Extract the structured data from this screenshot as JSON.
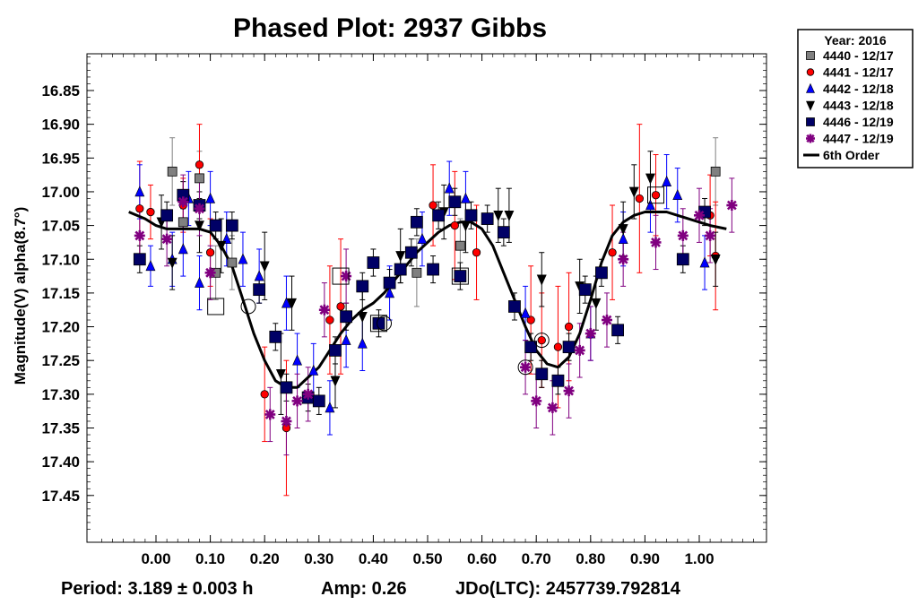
{
  "chart_data": {
    "type": "scatter",
    "title": "Phased Plot: 2937 Gibbs",
    "ylabel": "Magnitude(V) alpha(8.7°)",
    "xlabel": "",
    "xlim": [
      -0.1,
      1.12
    ],
    "ylim": [
      17.5,
      16.8
    ],
    "y_inverted": true,
    "grid": false,
    "legend_position": "outside-top-right",
    "x_ticks": [
      "0.00",
      "0.10",
      "0.20",
      "0.30",
      "0.40",
      "0.50",
      "0.60",
      "0.70",
      "0.80",
      "0.90",
      "1.00"
    ],
    "y_ticks": [
      "16.85",
      "16.90",
      "16.95",
      "17.00",
      "17.05",
      "17.10",
      "17.15",
      "17.20",
      "17.25",
      "17.30",
      "17.35",
      "17.40",
      "17.45"
    ],
    "legend_title": "Year: 2016",
    "series": [
      {
        "name": "4440 - 12/17",
        "marker": "square",
        "color": "#808080",
        "points": [
          [
            0.03,
            16.97,
            0.05
          ],
          [
            0.05,
            17.045,
            0.04
          ],
          [
            0.08,
            16.98,
            0.04
          ],
          [
            0.11,
            17.12,
            0.04
          ],
          [
            0.14,
            17.105,
            0.04
          ],
          [
            0.48,
            17.12,
            0.05
          ],
          [
            0.56,
            17.08,
            0.04
          ],
          [
            1.03,
            16.97,
            0.05
          ]
        ]
      },
      {
        "name": "4441 - 12/17",
        "marker": "circle",
        "color": "#ff0000",
        "points": [
          [
            -0.03,
            17.025,
            0.07
          ],
          [
            -0.01,
            17.03,
            0.04
          ],
          [
            0.05,
            17.02,
            0.04
          ],
          [
            0.08,
            16.96,
            0.06
          ],
          [
            0.1,
            17.09,
            0.05
          ],
          [
            0.2,
            17.3,
            0.07
          ],
          [
            0.24,
            17.35,
            0.1
          ],
          [
            0.32,
            17.19,
            0.08
          ],
          [
            0.34,
            17.17,
            0.1
          ],
          [
            0.51,
            17.02,
            0.06
          ],
          [
            0.55,
            17.05,
            0.08
          ],
          [
            0.59,
            17.09,
            0.07
          ],
          [
            0.69,
            17.19,
            0.08
          ],
          [
            0.71,
            17.22,
            0.07
          ],
          [
            0.74,
            17.23,
            0.09
          ],
          [
            0.76,
            17.2,
            0.08
          ],
          [
            0.84,
            17.09,
            0.07
          ],
          [
            0.89,
            17.01,
            0.11
          ],
          [
            0.92,
            17.005,
            0.06
          ],
          [
            1.02,
            17.035,
            0.06
          ],
          [
            1.03,
            17.095,
            0.08
          ]
        ]
      },
      {
        "name": "4442 - 12/18",
        "marker": "triangle-up",
        "color": "#0000ff",
        "points": [
          [
            -0.03,
            17.0,
            0.04
          ],
          [
            -0.01,
            17.11,
            0.03
          ],
          [
            0.03,
            17.1,
            0.04
          ],
          [
            0.05,
            17.085,
            0.04
          ],
          [
            0.06,
            17.01,
            0.04
          ],
          [
            0.08,
            17.135,
            0.04
          ],
          [
            0.1,
            17.01,
            0.04
          ],
          [
            0.13,
            17.07,
            0.04
          ],
          [
            0.16,
            17.1,
            0.04
          ],
          [
            0.19,
            17.125,
            0.04
          ],
          [
            0.24,
            17.165,
            0.04
          ],
          [
            0.26,
            17.25,
            0.04
          ],
          [
            0.29,
            17.265,
            0.04
          ],
          [
            0.32,
            17.32,
            0.04
          ],
          [
            0.35,
            17.22,
            0.04
          ],
          [
            0.38,
            17.225,
            0.04
          ],
          [
            0.43,
            17.15,
            0.04
          ],
          [
            0.49,
            17.07,
            0.04
          ],
          [
            0.54,
            16.995,
            0.04
          ],
          [
            0.57,
            17.01,
            0.04
          ],
          [
            0.68,
            17.18,
            0.04
          ],
          [
            0.8,
            17.21,
            0.04
          ],
          [
            0.86,
            17.07,
            0.04
          ],
          [
            0.91,
            17.02,
            0.04
          ],
          [
            0.94,
            16.985,
            0.04
          ],
          [
            0.96,
            17.005,
            0.04
          ],
          [
            1.01,
            17.105,
            0.04
          ]
        ]
      },
      {
        "name": "4443 - 12/18",
        "marker": "triangle-down",
        "color": "#000000",
        "points": [
          [
            0.01,
            17.045,
            0.04
          ],
          [
            0.03,
            17.105,
            0.04
          ],
          [
            0.08,
            17.05,
            0.04
          ],
          [
            0.12,
            17.08,
            0.04
          ],
          [
            0.2,
            17.11,
            0.05
          ],
          [
            0.23,
            17.27,
            0.06
          ],
          [
            0.25,
            17.165,
            0.04
          ],
          [
            0.33,
            17.28,
            0.04
          ],
          [
            0.38,
            17.185,
            0.04
          ],
          [
            0.45,
            17.095,
            0.04
          ],
          [
            0.53,
            17.03,
            0.04
          ],
          [
            0.57,
            17.05,
            0.04
          ],
          [
            0.63,
            17.035,
            0.04
          ],
          [
            0.65,
            17.035,
            0.04
          ],
          [
            0.71,
            17.13,
            0.04
          ],
          [
            0.78,
            17.14,
            0.04
          ],
          [
            0.81,
            17.165,
            0.04
          ],
          [
            0.86,
            17.055,
            0.04
          ],
          [
            0.88,
            17.0,
            0.04
          ],
          [
            0.91,
            16.98,
            0.04
          ],
          [
            1.03,
            17.1,
            0.04
          ]
        ]
      },
      {
        "name": "4446 - 12/19",
        "marker": "square",
        "color": "#000066",
        "points": [
          [
            -0.03,
            17.1,
            0.02
          ],
          [
            0.02,
            17.035,
            0.02
          ],
          [
            0.05,
            17.005,
            0.02
          ],
          [
            0.08,
            17.02,
            0.02
          ],
          [
            0.11,
            17.05,
            0.02
          ],
          [
            0.14,
            17.05,
            0.02
          ],
          [
            0.19,
            17.145,
            0.02
          ],
          [
            0.22,
            17.215,
            0.02
          ],
          [
            0.24,
            17.29,
            0.02
          ],
          [
            0.28,
            17.305,
            0.02
          ],
          [
            0.3,
            17.31,
            0.02
          ],
          [
            0.33,
            17.235,
            0.02
          ],
          [
            0.35,
            17.185,
            0.02
          ],
          [
            0.38,
            17.14,
            0.02
          ],
          [
            0.4,
            17.105,
            0.02
          ],
          [
            0.41,
            17.195,
            0.02
          ],
          [
            0.43,
            17.135,
            0.02
          ],
          [
            0.45,
            17.115,
            0.02
          ],
          [
            0.47,
            17.09,
            0.02
          ],
          [
            0.48,
            17.045,
            0.02
          ],
          [
            0.51,
            17.115,
            0.02
          ],
          [
            0.52,
            17.035,
            0.02
          ],
          [
            0.55,
            17.015,
            0.02
          ],
          [
            0.56,
            17.125,
            0.02
          ],
          [
            0.58,
            17.035,
            0.02
          ],
          [
            0.61,
            17.04,
            0.02
          ],
          [
            0.64,
            17.06,
            0.02
          ],
          [
            0.66,
            17.17,
            0.02
          ],
          [
            0.69,
            17.23,
            0.02
          ],
          [
            0.71,
            17.27,
            0.02
          ],
          [
            0.74,
            17.28,
            0.02
          ],
          [
            0.76,
            17.23,
            0.02
          ],
          [
            0.79,
            17.145,
            0.02
          ],
          [
            0.82,
            17.12,
            0.02
          ],
          [
            0.85,
            17.205,
            0.02
          ],
          [
            0.97,
            17.1,
            0.02
          ],
          [
            1.01,
            17.03,
            0.02
          ]
        ]
      },
      {
        "name": "4447 - 12/19",
        "marker": "asterisk",
        "color": "#800080",
        "points": [
          [
            -0.03,
            17.065,
            0.04
          ],
          [
            0.02,
            17.07,
            0.04
          ],
          [
            0.05,
            17.015,
            0.04
          ],
          [
            0.08,
            17.025,
            0.04
          ],
          [
            0.1,
            17.12,
            0.04
          ],
          [
            0.21,
            17.33,
            0.04
          ],
          [
            0.24,
            17.34,
            0.05
          ],
          [
            0.26,
            17.31,
            0.04
          ],
          [
            0.28,
            17.3,
            0.04
          ],
          [
            0.31,
            17.175,
            0.04
          ],
          [
            0.35,
            17.125,
            0.04
          ],
          [
            0.68,
            17.26,
            0.04
          ],
          [
            0.7,
            17.31,
            0.04
          ],
          [
            0.73,
            17.32,
            0.04
          ],
          [
            0.76,
            17.295,
            0.04
          ],
          [
            0.78,
            17.235,
            0.04
          ],
          [
            0.8,
            17.21,
            0.04
          ],
          [
            0.83,
            17.19,
            0.04
          ],
          [
            0.86,
            17.1,
            0.04
          ],
          [
            0.92,
            17.075,
            0.04
          ],
          [
            0.97,
            17.065,
            0.04
          ],
          [
            1.0,
            17.035,
            0.04
          ],
          [
            1.02,
            17.065,
            0.04
          ],
          [
            1.06,
            17.02,
            0.04
          ]
        ]
      }
    ],
    "fit": {
      "name": "6th Order",
      "x": [
        -0.05,
        -0.02,
        0.0,
        0.02,
        0.05,
        0.08,
        0.1,
        0.12,
        0.14,
        0.16,
        0.18,
        0.2,
        0.22,
        0.24,
        0.26,
        0.28,
        0.3,
        0.32,
        0.34,
        0.36,
        0.38,
        0.4,
        0.42,
        0.44,
        0.46,
        0.48,
        0.5,
        0.52,
        0.54,
        0.56,
        0.58,
        0.6,
        0.62,
        0.64,
        0.66,
        0.68,
        0.7,
        0.72,
        0.74,
        0.76,
        0.78,
        0.8,
        0.82,
        0.84,
        0.86,
        0.88,
        0.9,
        0.92,
        0.94,
        0.96,
        0.98,
        1.0,
        1.02,
        1.05
      ],
      "y": [
        17.03,
        17.04,
        17.05,
        17.055,
        17.055,
        17.055,
        17.06,
        17.08,
        17.11,
        17.16,
        17.21,
        17.25,
        17.28,
        17.29,
        17.29,
        17.275,
        17.26,
        17.235,
        17.21,
        17.19,
        17.175,
        17.165,
        17.15,
        17.13,
        17.11,
        17.09,
        17.075,
        17.06,
        17.05,
        17.045,
        17.045,
        17.055,
        17.08,
        17.12,
        17.16,
        17.2,
        17.235,
        17.255,
        17.26,
        17.245,
        17.21,
        17.16,
        17.105,
        17.065,
        17.045,
        17.035,
        17.03,
        17.03,
        17.03,
        17.035,
        17.04,
        17.045,
        17.05,
        17.055
      ]
    },
    "highlighted": [
      {
        "marker": "circle",
        "x": 0.17,
        "y": 17.17
      },
      {
        "marker": "square",
        "x": 0.11,
        "y": 17.17
      },
      {
        "marker": "square",
        "x": 0.34,
        "y": 17.125
      },
      {
        "marker": "square",
        "x": 0.41,
        "y": 17.195
      },
      {
        "marker": "circle",
        "x": 0.42,
        "y": 17.195
      },
      {
        "marker": "square",
        "x": 0.56,
        "y": 17.125
      },
      {
        "marker": "circle",
        "x": 0.68,
        "y": 17.26
      },
      {
        "marker": "circle",
        "x": 0.71,
        "y": 17.22
      },
      {
        "marker": "square",
        "x": 0.92,
        "y": 17.005
      }
    ],
    "footer": {
      "period": "Period: 3.189 ± 0.003 h",
      "amp": "Amp: 0.26",
      "jdo": "JDo(LTC): 2457739.792814"
    }
  }
}
